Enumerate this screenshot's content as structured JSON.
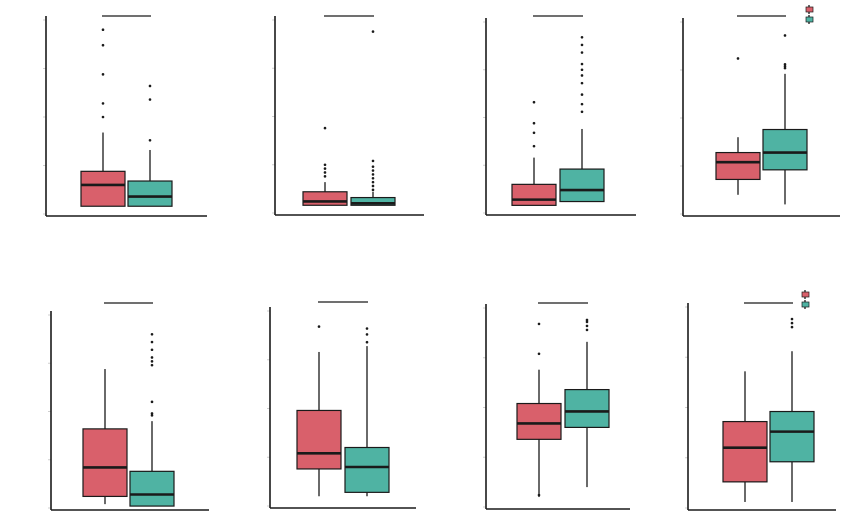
{
  "colors": {
    "group_a": "#D9606B",
    "group_b": "#4FB3A3",
    "line": "#1a1a1a"
  },
  "legend": {
    "placement": "top-right",
    "entries": [
      {
        "color": "#D9606B",
        "label": ""
      },
      {
        "color": "#4FB3A3",
        "label": ""
      }
    ]
  },
  "chart_data": [
    {
      "type": "box",
      "title": "",
      "xlabel": "",
      "ylabel": "",
      "ylim": [
        0,
        100
      ],
      "significance_bracket": true,
      "legend": false,
      "series": [
        {
          "color": "#D9606B",
          "q1": 4,
          "median": 15,
          "q3": 22,
          "whisker_low": 4,
          "whisker_high": 42,
          "outliers": [
            50,
            57,
            72,
            87,
            95
          ]
        },
        {
          "color": "#4FB3A3",
          "q1": 4,
          "median": 9,
          "q3": 17,
          "whisker_low": 4,
          "whisker_high": 33,
          "outliers": [
            38,
            59,
            66
          ]
        }
      ]
    },
    {
      "type": "box",
      "title": "",
      "xlabel": "",
      "ylabel": "",
      "ylim": [
        0,
        100
      ],
      "significance_bracket": true,
      "legend": false,
      "series": [
        {
          "color": "#D9606B",
          "q1": 4,
          "median": 6,
          "q3": 11,
          "whisker_low": 4,
          "whisker_high": 16,
          "outliers": [
            19,
            21,
            23,
            25,
            44
          ]
        },
        {
          "color": "#4FB3A3",
          "q1": 4,
          "median": 5,
          "q3": 8,
          "whisker_low": 4,
          "whisker_high": 11,
          "outliers": [
            12,
            14,
            16,
            18,
            20,
            22,
            24,
            27,
            94
          ]
        }
      ]
    },
    {
      "type": "box",
      "title": "",
      "xlabel": "",
      "ylabel": "",
      "ylim": [
        0,
        100
      ],
      "significance_bracket": true,
      "legend": false,
      "series": [
        {
          "color": "#D9606B",
          "q1": 4,
          "median": 7,
          "q3": 15,
          "whisker_low": 4,
          "whisker_high": 29,
          "outliers": [
            35,
            42,
            47,
            58
          ]
        },
        {
          "color": "#4FB3A3",
          "q1": 6,
          "median": 12,
          "q3": 23,
          "whisker_low": 6,
          "whisker_high": 44,
          "outliers": [
            53,
            57,
            62,
            68,
            72,
            75,
            78,
            84,
            88,
            92
          ]
        }
      ]
    },
    {
      "type": "box",
      "title": "",
      "xlabel": "",
      "ylabel": "",
      "ylim": [
        0,
        100
      ],
      "significance_bracket": true,
      "legend": true,
      "series": [
        {
          "color": "#D9606B",
          "q1": 18,
          "median": 27,
          "q3": 32,
          "whisker_low": 10,
          "whisker_high": 40,
          "outliers": [
            81
          ]
        },
        {
          "color": "#4FB3A3",
          "q1": 23,
          "median": 32,
          "q3": 44,
          "whisker_low": 5,
          "whisker_high": 73,
          "outliers": [
            76,
            77,
            78,
            93
          ]
        }
      ]
    },
    {
      "type": "box",
      "title": "",
      "xlabel": "",
      "ylabel": "",
      "ylim": [
        0,
        100
      ],
      "significance_bracket": true,
      "legend": false,
      "series": [
        {
          "color": "#D9606B",
          "q1": 6,
          "median": 21,
          "q3": 41,
          "whisker_low": 2,
          "whisker_high": 72,
          "outliers": []
        },
        {
          "color": "#4FB3A3",
          "q1": 1,
          "median": 7,
          "q3": 19,
          "whisker_low": 1,
          "whisker_high": 45,
          "outliers": [
            48,
            49,
            55,
            74,
            76,
            78,
            82,
            86,
            90
          ]
        }
      ]
    },
    {
      "type": "box",
      "title": "",
      "xlabel": "",
      "ylabel": "",
      "ylim": [
        0,
        100
      ],
      "significance_bracket": true,
      "legend": false,
      "series": [
        {
          "color": "#D9606B",
          "q1": 19,
          "median": 27,
          "q3": 49,
          "whisker_low": 5,
          "whisker_high": 79,
          "outliers": [
            92
          ]
        },
        {
          "color": "#4FB3A3",
          "q1": 7,
          "median": 20,
          "q3": 30,
          "whisker_low": 5,
          "whisker_high": 82,
          "outliers": [
            84,
            88,
            91
          ]
        }
      ]
    },
    {
      "type": "box",
      "title": "",
      "xlabel": "",
      "ylabel": "",
      "ylim": [
        0,
        100
      ],
      "significance_bracket": true,
      "legend": false,
      "series": [
        {
          "color": "#D9606B",
          "q1": 34,
          "median": 42,
          "q3": 52,
          "whisker_low": 5,
          "whisker_high": 69,
          "outliers": [
            6,
            77,
            92
          ]
        },
        {
          "color": "#4FB3A3",
          "q1": 40,
          "median": 48,
          "q3": 59,
          "whisker_low": 10,
          "whisker_high": 83,
          "outliers": [
            89,
            91,
            93,
            94
          ]
        }
      ]
    },
    {
      "type": "box",
      "title": "",
      "xlabel": "",
      "ylabel": "",
      "ylim": [
        0,
        100
      ],
      "significance_bracket": true,
      "legend": true,
      "series": [
        {
          "color": "#D9606B",
          "q1": 13,
          "median": 30,
          "q3": 43,
          "whisker_low": 3,
          "whisker_high": 68,
          "outliers": []
        },
        {
          "color": "#4FB3A3",
          "q1": 23,
          "median": 38,
          "q3": 48,
          "whisker_low": 3,
          "whisker_high": 78,
          "outliers": [
            90,
            92,
            94
          ]
        }
      ]
    }
  ]
}
